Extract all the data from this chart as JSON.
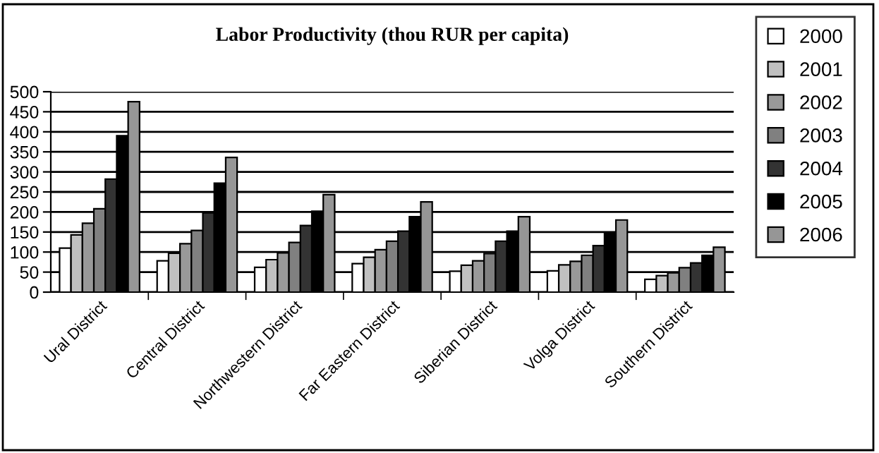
{
  "chart_data": {
    "type": "bar",
    "title": "Labor Productivity (thou RUR per capita)",
    "categories": [
      "Ural District",
      "Central District",
      "Northwestern District",
      "Far Eastern District",
      "Siberian District",
      "Volga District",
      "Southern District"
    ],
    "series": [
      {
        "name": "2000",
        "color": "#ffffff",
        "values": [
          110,
          78,
          62,
          71,
          52,
          53,
          32
        ]
      },
      {
        "name": "2001",
        "color": "#c0c0c0",
        "values": [
          143,
          97,
          81,
          87,
          67,
          68,
          41
        ]
      },
      {
        "name": "2002",
        "color": "#999999",
        "values": [
          172,
          121,
          98,
          106,
          78,
          77,
          48
        ]
      },
      {
        "name": "2003",
        "color": "#808080",
        "values": [
          208,
          154,
          124,
          127,
          96,
          92,
          61
        ]
      },
      {
        "name": "2004",
        "color": "#333333",
        "values": [
          282,
          198,
          166,
          152,
          127,
          116,
          73
        ]
      },
      {
        "name": "2005",
        "color": "#000000",
        "values": [
          390,
          272,
          202,
          188,
          152,
          148,
          92
        ]
      },
      {
        "name": "2006",
        "color": "#969696",
        "values": [
          475,
          336,
          243,
          225,
          188,
          180,
          112
        ]
      }
    ],
    "ylim": [
      0,
      500
    ],
    "yticks": [
      0,
      50,
      100,
      150,
      200,
      250,
      300,
      350,
      400,
      450,
      500
    ],
    "grid": "y",
    "legend": "right"
  }
}
